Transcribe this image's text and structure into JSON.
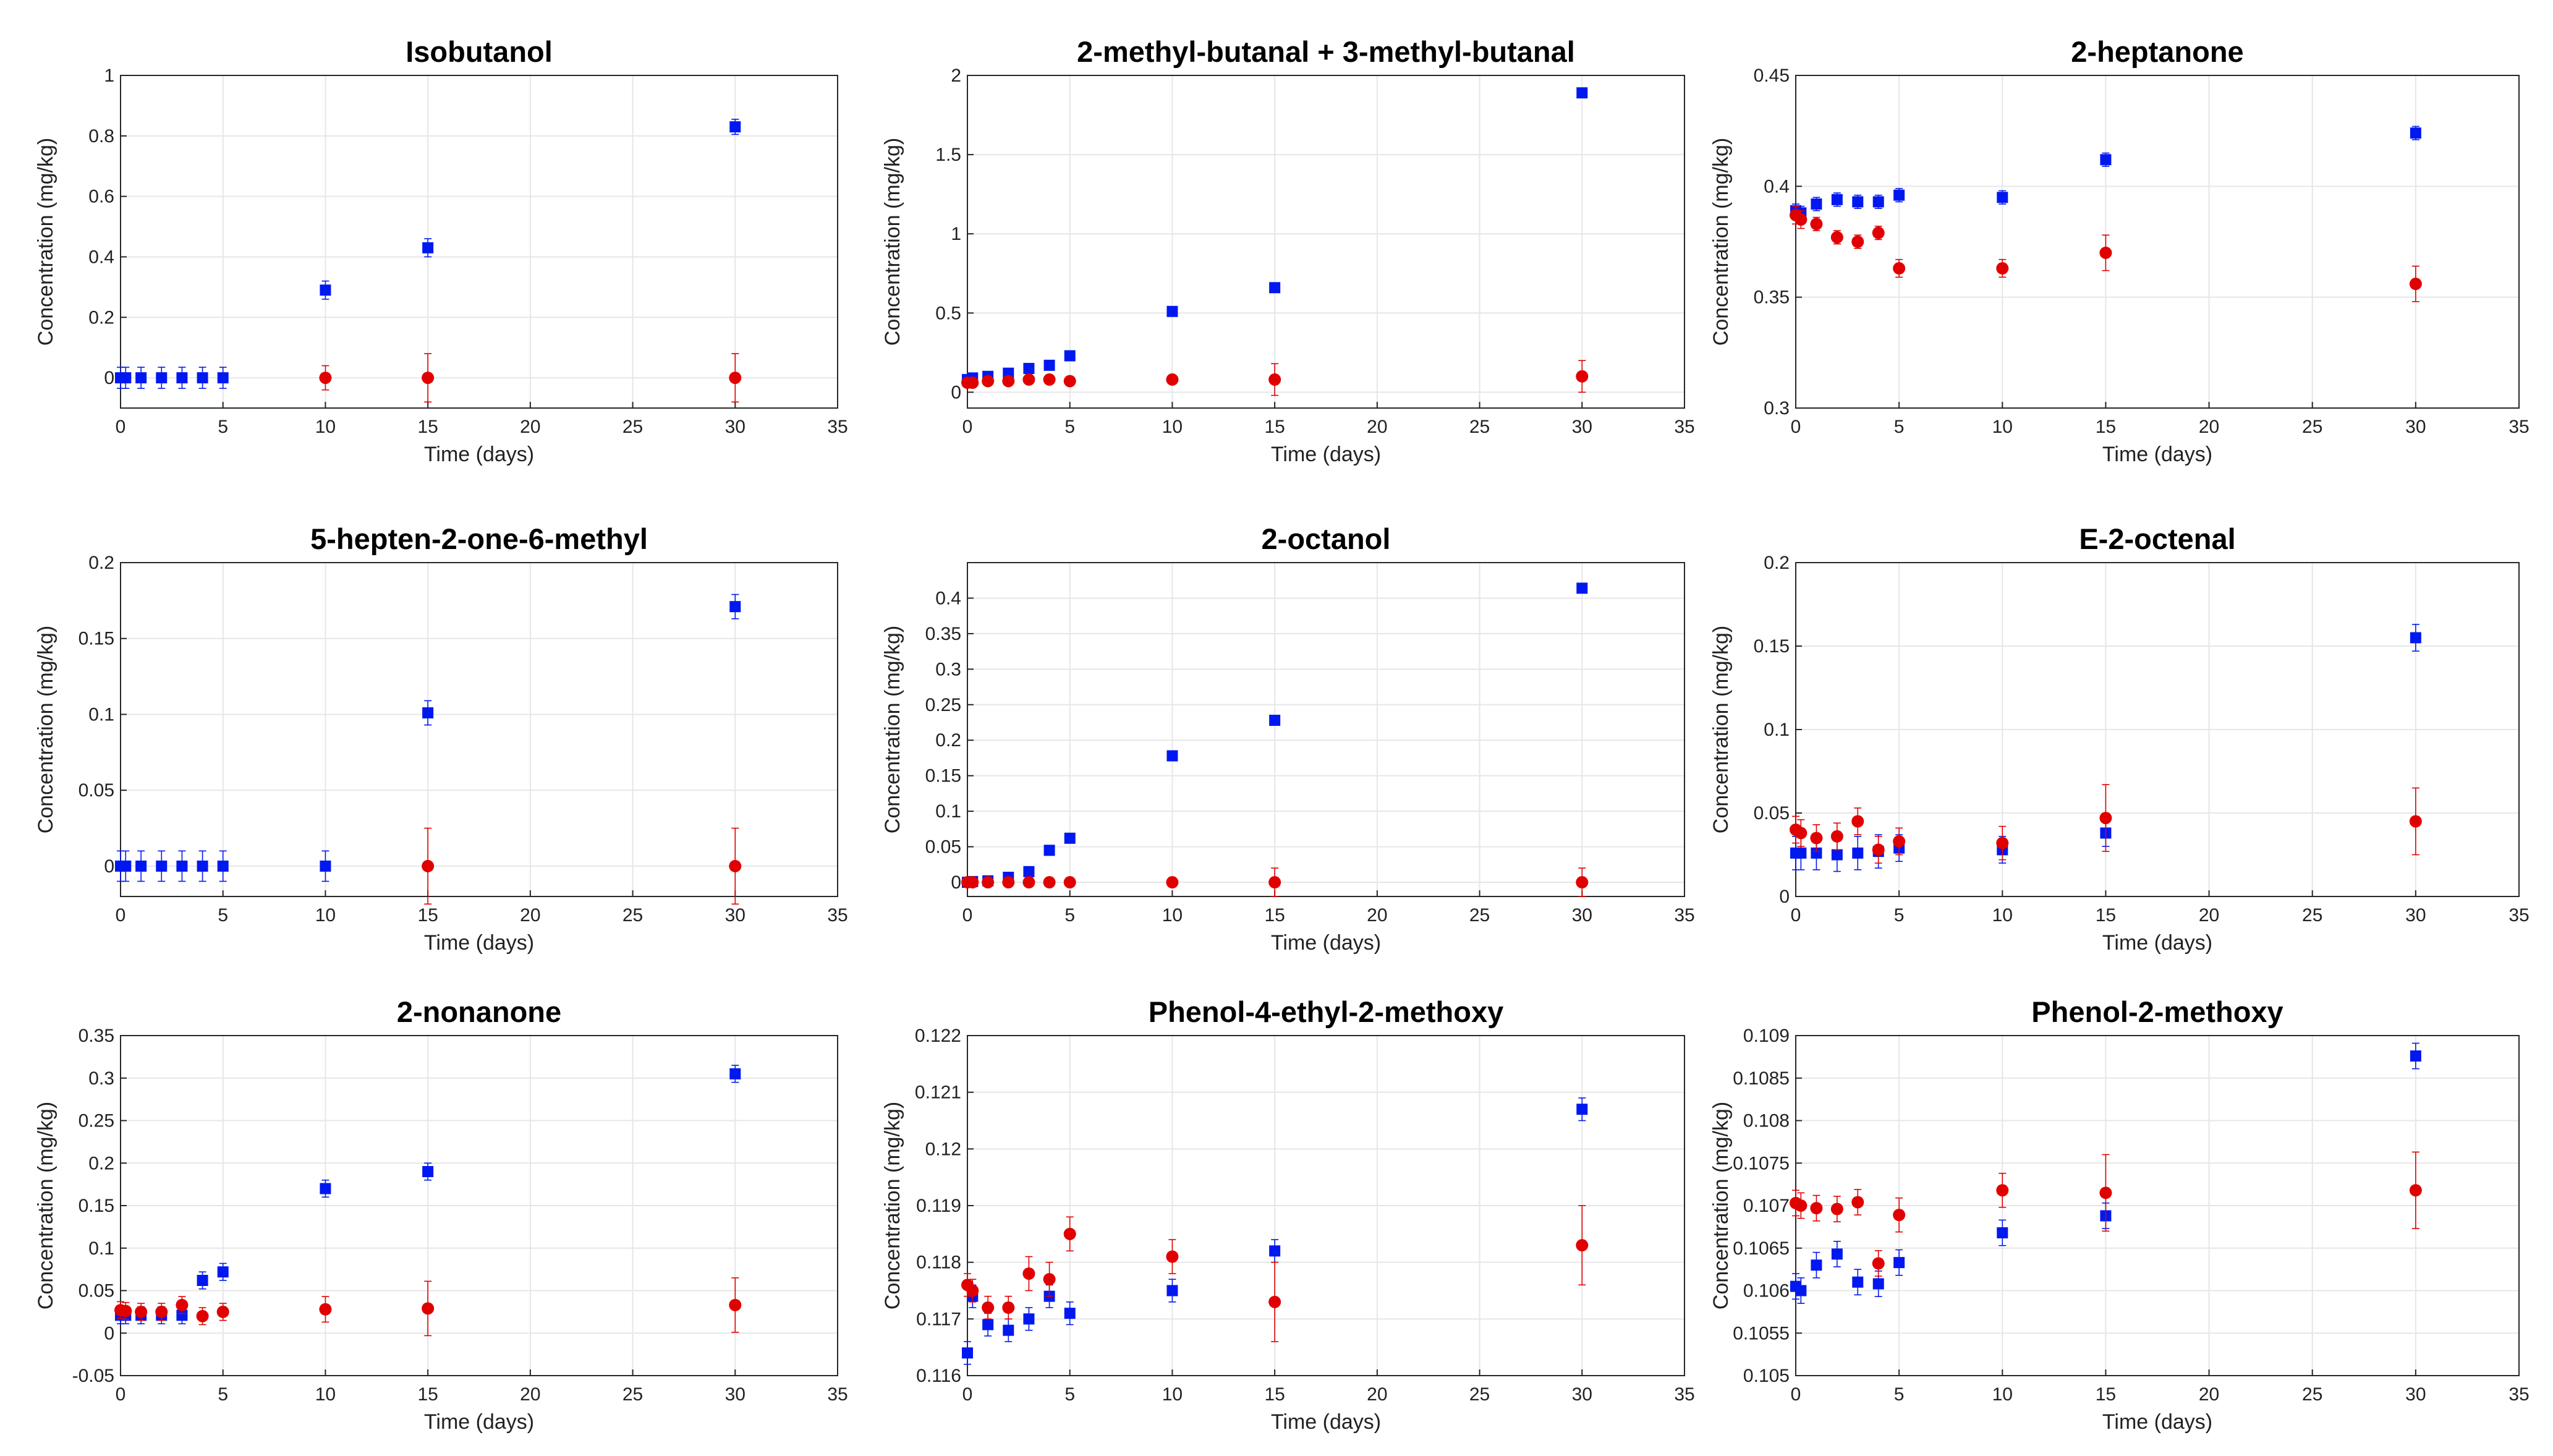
{
  "colors": {
    "blue": "#0018f0",
    "red": "#e00000",
    "axis": "#262626",
    "grid": "#e6e6e6"
  },
  "chart_data": [
    {
      "type": "scatter",
      "title": "Isobutanol",
      "xlabel": "Time (days)",
      "ylabel": "Concentration (mg/kg)",
      "xlim": [
        0,
        35
      ],
      "ylim": [
        -0.1,
        1
      ],
      "xticks": [
        0,
        5,
        10,
        15,
        20,
        25,
        30,
        35
      ],
      "xtick_labels": [
        "0",
        "5",
        "10",
        "15",
        "20",
        "25",
        "30",
        "35"
      ],
      "yticks": [
        0,
        0.2,
        0.4,
        0.6,
        0.8,
        1
      ],
      "ytick_labels": [
        "0",
        "0.2",
        "0.4",
        "0.6",
        "0.8",
        "1"
      ],
      "grid": true,
      "series": [
        {
          "name": "blue",
          "marker": "square",
          "color": "blue",
          "x": [
            0,
            0.25,
            1,
            2,
            3,
            4,
            5,
            10,
            15,
            30
          ],
          "y": [
            0,
            0,
            0,
            0,
            0,
            0,
            0,
            0.29,
            0.43,
            0.83
          ],
          "err": [
            0.035,
            0.035,
            0.035,
            0.035,
            0.035,
            0.035,
            0.035,
            0.03,
            0.03,
            0.025
          ]
        },
        {
          "name": "red",
          "marker": "circle",
          "color": "red",
          "x": [
            10,
            15,
            30
          ],
          "y": [
            0,
            0,
            0
          ],
          "err": [
            0.04,
            0.08,
            0.08
          ]
        }
      ]
    },
    {
      "type": "scatter",
      "title": "2-methyl-butanal + 3-methyl-butanal",
      "xlabel": "Time (days)",
      "ylabel": "Concentration (mg/kg)",
      "xlim": [
        0,
        35
      ],
      "ylim": [
        -0.1,
        2
      ],
      "xticks": [
        0,
        5,
        10,
        15,
        20,
        25,
        30,
        35
      ],
      "xtick_labels": [
        "0",
        "5",
        "10",
        "15",
        "20",
        "25",
        "30",
        "35"
      ],
      "yticks": [
        0,
        0.5,
        1,
        1.5,
        2
      ],
      "ytick_labels": [
        "0",
        "0.5",
        "1",
        "1.5",
        "2"
      ],
      "grid": true,
      "series": [
        {
          "name": "blue",
          "marker": "square",
          "color": "blue",
          "x": [
            0,
            0.25,
            1,
            2,
            3,
            4,
            5,
            10,
            15,
            30
          ],
          "y": [
            0.08,
            0.09,
            0.1,
            0.12,
            0.15,
            0.17,
            0.23,
            0.51,
            0.66,
            1.89
          ],
          "err": [
            0.02,
            0.02,
            0.02,
            0.02,
            0.02,
            0.02,
            0.02,
            0.02,
            0.02,
            0.02
          ]
        },
        {
          "name": "red",
          "marker": "circle",
          "color": "red",
          "x": [
            0,
            0.25,
            1,
            2,
            3,
            4,
            5,
            10,
            15,
            30
          ],
          "y": [
            0.06,
            0.06,
            0.07,
            0.07,
            0.08,
            0.08,
            0.07,
            0.08,
            0.08,
            0.1
          ],
          "err": [
            0.01,
            0.01,
            0.01,
            0.01,
            0.01,
            0.01,
            0.01,
            0.02,
            0.1,
            0.1
          ]
        }
      ]
    },
    {
      "type": "scatter",
      "title": "2-heptanone",
      "xlabel": "Time (days)",
      "ylabel": "Concentration (mg/kg)",
      "xlim": [
        0,
        35
      ],
      "ylim": [
        0.3,
        0.45
      ],
      "xticks": [
        0,
        5,
        10,
        15,
        20,
        25,
        30,
        35
      ],
      "xtick_labels": [
        "0",
        "5",
        "10",
        "15",
        "20",
        "25",
        "30",
        "35"
      ],
      "yticks": [
        0.3,
        0.35,
        0.4,
        0.45
      ],
      "ytick_labels": [
        "0.3",
        "0.35",
        "0.4",
        "0.45"
      ],
      "grid": true,
      "series": [
        {
          "name": "blue",
          "marker": "square",
          "color": "blue",
          "x": [
            0,
            0.25,
            1,
            2,
            3,
            4,
            5,
            10,
            15,
            30
          ],
          "y": [
            0.389,
            0.388,
            0.392,
            0.394,
            0.393,
            0.393,
            0.396,
            0.395,
            0.412,
            0.424
          ],
          "err": [
            0.003,
            0.003,
            0.003,
            0.003,
            0.003,
            0.003,
            0.003,
            0.003,
            0.003,
            0.003
          ]
        },
        {
          "name": "red",
          "marker": "circle",
          "color": "red",
          "x": [
            0,
            0.25,
            1,
            2,
            3,
            4,
            5,
            10,
            15,
            30
          ],
          "y": [
            0.387,
            0.385,
            0.383,
            0.377,
            0.375,
            0.379,
            0.363,
            0.363,
            0.37,
            0.356
          ],
          "err": [
            0.004,
            0.004,
            0.003,
            0.003,
            0.003,
            0.003,
            0.004,
            0.004,
            0.008,
            0.008
          ]
        }
      ]
    },
    {
      "type": "scatter",
      "title": "5-hepten-2-one-6-methyl",
      "xlabel": "Time (days)",
      "ylabel": "Concentration (mg/kg)",
      "xlim": [
        0,
        35
      ],
      "ylim": [
        -0.02,
        0.2
      ],
      "xticks": [
        0,
        5,
        10,
        15,
        20,
        25,
        30,
        35
      ],
      "xtick_labels": [
        "0",
        "5",
        "10",
        "15",
        "20",
        "25",
        "30",
        "35"
      ],
      "yticks": [
        0,
        0.05,
        0.1,
        0.15,
        0.2
      ],
      "ytick_labels": [
        "0",
        "0.05",
        "0.1",
        "0.15",
        "0.2"
      ],
      "grid": true,
      "series": [
        {
          "name": "blue",
          "marker": "square",
          "color": "blue",
          "x": [
            0,
            0.25,
            1,
            2,
            3,
            4,
            5,
            10,
            15,
            30
          ],
          "y": [
            0,
            0,
            0,
            0,
            0,
            0,
            0,
            0,
            0.101,
            0.171
          ],
          "err": [
            0.01,
            0.01,
            0.01,
            0.01,
            0.01,
            0.01,
            0.01,
            0.01,
            0.008,
            0.008
          ]
        },
        {
          "name": "red",
          "marker": "circle",
          "color": "red",
          "x": [
            15,
            30
          ],
          "y": [
            0,
            0
          ],
          "err": [
            0.025,
            0.025
          ]
        }
      ]
    },
    {
      "type": "scatter",
      "title": "2-octanol",
      "xlabel": "Time (days)",
      "ylabel": "Concentration (mg/kg)",
      "xlim": [
        0,
        35
      ],
      "ylim": [
        -0.02,
        0.45
      ],
      "xticks": [
        0,
        5,
        10,
        15,
        20,
        25,
        30,
        35
      ],
      "xtick_labels": [
        "0",
        "5",
        "10",
        "15",
        "20",
        "25",
        "30",
        "35"
      ],
      "yticks": [
        0,
        0.05,
        0.1,
        0.15,
        0.2,
        0.25,
        0.3,
        0.35,
        0.4
      ],
      "ytick_labels": [
        "0",
        "0.05",
        "0.1",
        "0.15",
        "0.2",
        "0.25",
        "0.3",
        "0.35",
        "0.4"
      ],
      "grid": true,
      "series": [
        {
          "name": "blue",
          "marker": "square",
          "color": "blue",
          "x": [
            0,
            0.25,
            1,
            2,
            3,
            4,
            5,
            10,
            15,
            30
          ],
          "y": [
            0,
            0.001,
            0.002,
            0.007,
            0.015,
            0.045,
            0.062,
            0.178,
            0.228,
            0.414
          ],
          "err": [
            0.003,
            0.003,
            0.003,
            0.003,
            0.003,
            0.004,
            0.004,
            0.004,
            0.004,
            0.004
          ]
        },
        {
          "name": "red",
          "marker": "circle",
          "color": "red",
          "x": [
            0,
            0.25,
            1,
            2,
            3,
            4,
            5,
            10,
            15,
            30
          ],
          "y": [
            0,
            0,
            0,
            0,
            0,
            0,
            0,
            0,
            0,
            0
          ],
          "err": [
            0.003,
            0.003,
            0.003,
            0.003,
            0.003,
            0.003,
            0.003,
            0.005,
            0.02,
            0.02
          ]
        }
      ]
    },
    {
      "type": "scatter",
      "title": "E-2-octenal",
      "xlabel": "Time (days)",
      "ylabel": "Concentration (mg/kg)",
      "xlim": [
        0,
        35
      ],
      "ylim": [
        0,
        0.2
      ],
      "xticks": [
        0,
        5,
        10,
        15,
        20,
        25,
        30,
        35
      ],
      "xtick_labels": [
        "0",
        "5",
        "10",
        "15",
        "20",
        "25",
        "30",
        "35"
      ],
      "yticks": [
        0,
        0.05,
        0.1,
        0.15,
        0.2
      ],
      "ytick_labels": [
        "0",
        "0.05",
        "0.1",
        "0.15",
        "0.2"
      ],
      "grid": true,
      "series": [
        {
          "name": "blue",
          "marker": "square",
          "color": "blue",
          "x": [
            0,
            0.25,
            1,
            2,
            3,
            4,
            5,
            10,
            15,
            30
          ],
          "y": [
            0.026,
            0.026,
            0.026,
            0.025,
            0.026,
            0.027,
            0.029,
            0.028,
            0.038,
            0.155
          ],
          "err": [
            0.01,
            0.01,
            0.01,
            0.01,
            0.01,
            0.01,
            0.008,
            0.008,
            0.008,
            0.008
          ]
        },
        {
          "name": "red",
          "marker": "circle",
          "color": "red",
          "x": [
            0,
            0.25,
            1,
            2,
            3,
            4,
            5,
            10,
            15,
            30
          ],
          "y": [
            0.04,
            0.038,
            0.035,
            0.036,
            0.045,
            0.028,
            0.033,
            0.032,
            0.047,
            0.045
          ],
          "err": [
            0.008,
            0.008,
            0.008,
            0.008,
            0.008,
            0.008,
            0.008,
            0.01,
            0.02,
            0.02
          ]
        }
      ]
    },
    {
      "type": "scatter",
      "title": "2-nonanone",
      "xlabel": "Time (days)",
      "ylabel": "Concentration (mg/kg)",
      "xlim": [
        0,
        35
      ],
      "ylim": [
        -0.05,
        0.35
      ],
      "xticks": [
        0,
        5,
        10,
        15,
        20,
        25,
        30,
        35
      ],
      "xtick_labels": [
        "0",
        "5",
        "10",
        "15",
        "20",
        "25",
        "30",
        "35"
      ],
      "yticks": [
        -0.05,
        0,
        0.05,
        0.1,
        0.15,
        0.2,
        0.25,
        0.3,
        0.35
      ],
      "ytick_labels": [
        "-0.05",
        "0",
        "0.05",
        "0.1",
        "0.15",
        "0.2",
        "0.25",
        "0.3",
        "0.35"
      ],
      "grid": true,
      "series": [
        {
          "name": "blue",
          "marker": "square",
          "color": "blue",
          "x": [
            0,
            0.25,
            1,
            2,
            3,
            4,
            5,
            10,
            15,
            30
          ],
          "y": [
            0.021,
            0.021,
            0.021,
            0.021,
            0.021,
            0.062,
            0.072,
            0.17,
            0.19,
            0.305
          ],
          "err": [
            0.01,
            0.01,
            0.01,
            0.01,
            0.01,
            0.01,
            0.01,
            0.01,
            0.01,
            0.01
          ]
        },
        {
          "name": "red",
          "marker": "circle",
          "color": "red",
          "x": [
            0,
            0.25,
            1,
            2,
            3,
            4,
            5,
            10,
            15,
            30
          ],
          "y": [
            0.027,
            0.026,
            0.025,
            0.025,
            0.033,
            0.02,
            0.025,
            0.028,
            0.029,
            0.033
          ],
          "err": [
            0.01,
            0.01,
            0.01,
            0.01,
            0.01,
            0.01,
            0.01,
            0.015,
            0.032,
            0.032
          ]
        }
      ]
    },
    {
      "type": "scatter",
      "title": "Phenol-4-ethyl-2-methoxy",
      "xlabel": "Time (days)",
      "ylabel": "Concentration (mg/kg)",
      "xlim": [
        0,
        35
      ],
      "ylim": [
        0.116,
        0.122
      ],
      "xticks": [
        0,
        5,
        10,
        15,
        20,
        25,
        30,
        35
      ],
      "xtick_labels": [
        "0",
        "5",
        "10",
        "15",
        "20",
        "25",
        "30",
        "35"
      ],
      "yticks": [
        0.116,
        0.117,
        0.118,
        0.119,
        0.12,
        0.121,
        0.122
      ],
      "ytick_labels": [
        "0.116",
        "0.117",
        "0.118",
        "0.119",
        "0.12",
        "0.121",
        "0.122"
      ],
      "grid": true,
      "series": [
        {
          "name": "blue",
          "marker": "square",
          "color": "blue",
          "x": [
            0,
            0.25,
            1,
            2,
            3,
            4,
            5,
            10,
            15,
            30
          ],
          "y": [
            0.1164,
            0.1174,
            0.1169,
            0.1168,
            0.117,
            0.1174,
            0.1171,
            0.1175,
            0.1182,
            0.1207
          ],
          "err": [
            0.0002,
            0.0002,
            0.0002,
            0.0002,
            0.0002,
            0.0002,
            0.0002,
            0.0002,
            0.0002,
            0.0002
          ]
        },
        {
          "name": "red",
          "marker": "circle",
          "color": "red",
          "x": [
            0,
            0.25,
            1,
            2,
            3,
            4,
            5,
            10,
            15,
            30
          ],
          "y": [
            0.1176,
            0.1175,
            0.1172,
            0.1172,
            0.1178,
            0.1177,
            0.1185,
            0.1181,
            0.1173,
            0.1183
          ],
          "err": [
            0.0002,
            0.0002,
            0.0002,
            0.0002,
            0.0003,
            0.0003,
            0.0003,
            0.0003,
            0.0007,
            0.0007
          ]
        }
      ]
    },
    {
      "type": "scatter",
      "title": "Phenol-2-methoxy",
      "xlabel": "Time (days)",
      "ylabel": "Concentration (mg/kg)",
      "xlim": [
        0,
        35
      ],
      "ylim": [
        0.105,
        0.109
      ],
      "xticks": [
        0,
        5,
        10,
        15,
        20,
        25,
        30,
        35
      ],
      "xtick_labels": [
        "0",
        "5",
        "10",
        "15",
        "20",
        "25",
        "30",
        "35"
      ],
      "yticks": [
        0.105,
        0.1055,
        0.106,
        0.1065,
        0.107,
        0.1075,
        0.108,
        0.1085,
        0.109
      ],
      "ytick_labels": [
        "0.105",
        "0.1055",
        "0.106",
        "0.1065",
        "0.107",
        "0.1075",
        "0.108",
        "0.1085",
        "0.109"
      ],
      "grid": true,
      "series": [
        {
          "name": "blue",
          "marker": "square",
          "color": "blue",
          "x": [
            0,
            0.25,
            1,
            2,
            3,
            4,
            5,
            10,
            15,
            30
          ],
          "y": [
            0.10605,
            0.106,
            0.1063,
            0.10643,
            0.1061,
            0.10608,
            0.10633,
            0.10668,
            0.10688,
            0.10876
          ],
          "err": [
            0.00015,
            0.00015,
            0.00015,
            0.00015,
            0.00015,
            0.00015,
            0.00015,
            0.00015,
            0.00015,
            0.00015
          ]
        },
        {
          "name": "red",
          "marker": "circle",
          "color": "red",
          "x": [
            0,
            0.25,
            1,
            2,
            3,
            4,
            5,
            10,
            15,
            30
          ],
          "y": [
            0.10703,
            0.107,
            0.10697,
            0.10696,
            0.10704,
            0.10632,
            0.10689,
            0.10718,
            0.10715,
            0.10718
          ],
          "err": [
            0.00015,
            0.00015,
            0.00015,
            0.00015,
            0.00015,
            0.00015,
            0.0002,
            0.0002,
            0.00045,
            0.00045
          ]
        }
      ]
    }
  ]
}
